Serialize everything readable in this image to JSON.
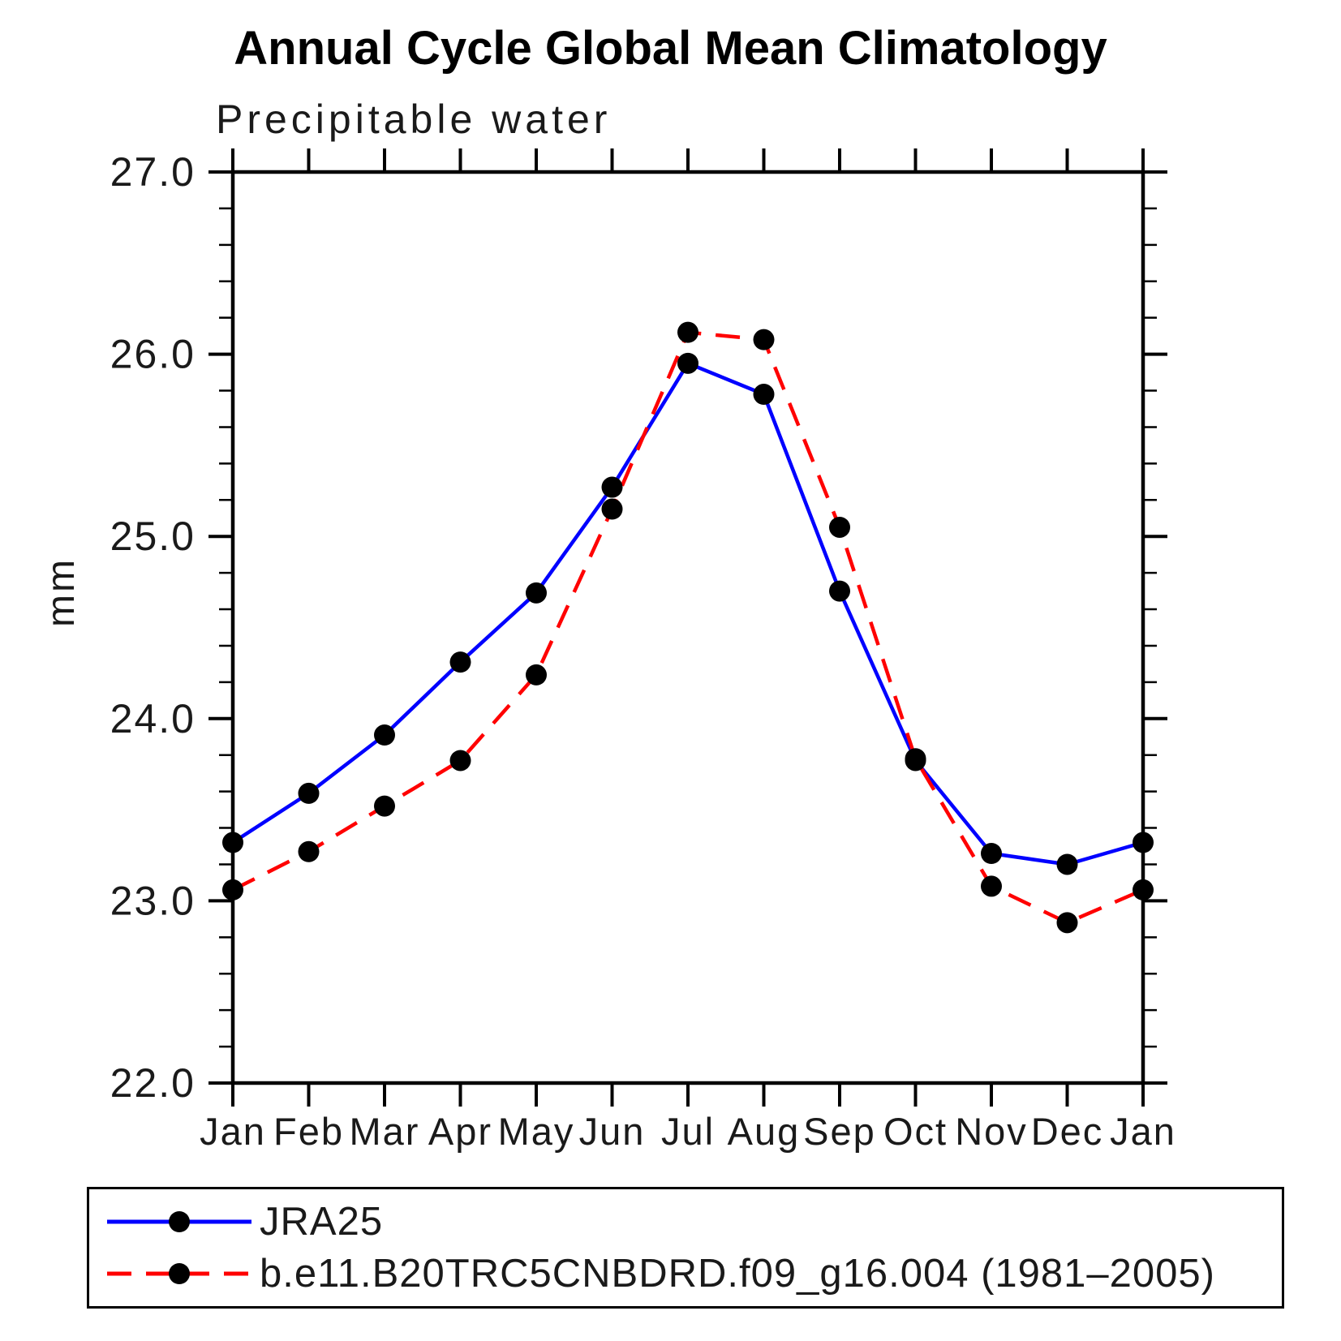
{
  "chart_data": {
    "type": "line",
    "title": "Annual Cycle Global Mean Climatology",
    "subtitle": "Precipitable water",
    "ylabel": "mm",
    "categories": [
      "Jan",
      "Feb",
      "Mar",
      "Apr",
      "May",
      "Jun",
      "Jul",
      "Aug",
      "Sep",
      "Oct",
      "Nov",
      "Dec",
      "Jan"
    ],
    "ylim": [
      22.0,
      27.0
    ],
    "yticks": {
      "values": [
        22.0,
        23.0,
        24.0,
        25.0,
        26.0,
        27.0
      ],
      "labels": [
        "22.0",
        "23.0",
        "24.0",
        "25.0",
        "26.0",
        "27.0"
      ],
      "minor_step": 0.2
    },
    "grid": false,
    "legend_position": "bottom-left-box",
    "axis_color": "#000000",
    "marker": "filled-circle",
    "series": [
      {
        "name": "JRA25",
        "color": "#0000ff",
        "line_style": "solid",
        "marker_color": "#000000",
        "values": [
          23.32,
          23.59,
          23.91,
          24.31,
          24.69,
          25.27,
          25.95,
          25.78,
          24.7,
          23.77,
          23.26,
          23.2,
          23.32
        ]
      },
      {
        "name": "b.e11.B20TRC5CNBDRD.f09_g16.004 (1981–2005)",
        "color": "#ff0000",
        "line_style": "dashed",
        "marker_color": "#000000",
        "values": [
          23.06,
          23.27,
          23.52,
          23.77,
          24.24,
          25.15,
          26.12,
          26.08,
          25.05,
          23.78,
          23.08,
          22.88,
          23.06
        ]
      }
    ]
  }
}
